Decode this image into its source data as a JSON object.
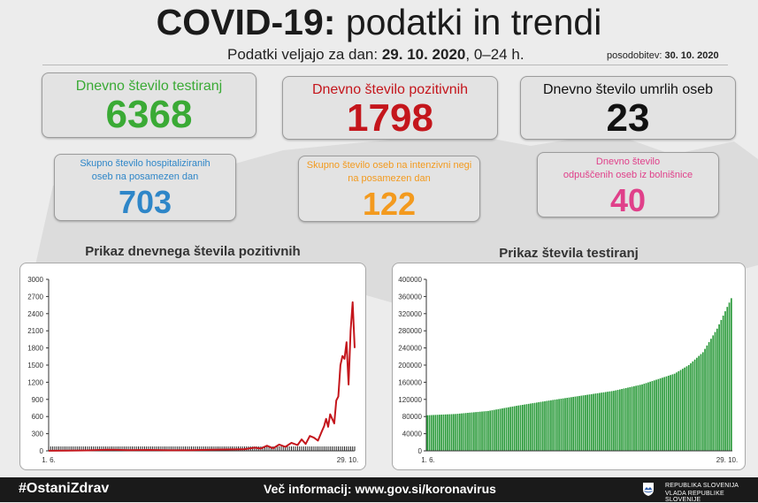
{
  "header": {
    "title_bold": "COVID-19:",
    "title_rest": "podatki in trendi",
    "subtitle_prefix": "Podatki veljajo za dan:",
    "subtitle_date": "29. 10. 2020",
    "subtitle_suffix": ", 0–24 h.",
    "update_label": "posodobitev:",
    "update_date": "30. 10. 2020"
  },
  "cards": {
    "tested": {
      "label": "Dnevno število testiranj",
      "value": "6368",
      "color": "#3aaa35"
    },
    "positive": {
      "label": "Dnevno število pozitivnih",
      "value": "1798",
      "color": "#c4161c"
    },
    "deaths": {
      "label": "Dnevno število umrlih oseb",
      "value": "23",
      "color": "#111111"
    },
    "hospitalized": {
      "label_line1": "Skupno število hospitaliziranih",
      "label_line2": "oseb na posamezen dan",
      "value": "703",
      "color": "#2e86c8"
    },
    "icu": {
      "label_line1": "Skupno število oseb na intenzivni negi",
      "label_line2": "na posamezen dan",
      "value": "122",
      "color": "#f39a1e"
    },
    "discharged": {
      "label_line1": "Dnevno število",
      "label_line2": "odpuščenih oseb iz bolnišnice",
      "value": "40",
      "color": "#e0408a"
    }
  },
  "chart_data": [
    {
      "type": "line",
      "title": "Prikaz dnevnega števila pozitivnih",
      "ylim": [
        0,
        3000
      ],
      "yticks": [
        0,
        300,
        600,
        900,
        1200,
        1500,
        1800,
        2100,
        2400,
        2700,
        3000
      ],
      "xlabel_start": "1. 6.",
      "xlabel_end": "29. 10.",
      "color": "#c4161c",
      "baseline_color": "#222222",
      "x_start": "2020-06-01",
      "x_end": "2020-10-29",
      "points": [
        [
          "2020-06-01",
          2
        ],
        [
          "2020-06-10",
          3
        ],
        [
          "2020-06-20",
          8
        ],
        [
          "2020-06-30",
          20
        ],
        [
          "2020-07-10",
          12
        ],
        [
          "2020-07-20",
          15
        ],
        [
          "2020-07-31",
          10
        ],
        [
          "2020-08-10",
          12
        ],
        [
          "2020-08-20",
          20
        ],
        [
          "2020-08-31",
          25
        ],
        [
          "2020-09-05",
          30
        ],
        [
          "2020-09-10",
          55
        ],
        [
          "2020-09-13",
          40
        ],
        [
          "2020-09-16",
          90
        ],
        [
          "2020-09-19",
          45
        ],
        [
          "2020-09-22",
          110
        ],
        [
          "2020-09-25",
          70
        ],
        [
          "2020-09-28",
          140
        ],
        [
          "2020-10-01",
          100
        ],
        [
          "2020-10-03",
          200
        ],
        [
          "2020-10-05",
          120
        ],
        [
          "2020-10-07",
          260
        ],
        [
          "2020-10-09",
          230
        ],
        [
          "2020-10-11",
          180
        ],
        [
          "2020-10-13",
          350
        ],
        [
          "2020-10-14",
          430
        ],
        [
          "2020-10-15",
          560
        ],
        [
          "2020-10-16",
          420
        ],
        [
          "2020-10-17",
          640
        ],
        [
          "2020-10-18",
          560
        ],
        [
          "2020-10-19",
          480
        ],
        [
          "2020-10-20",
          880
        ],
        [
          "2020-10-21",
          950
        ],
        [
          "2020-10-22",
          1500
        ],
        [
          "2020-10-23",
          1660
        ],
        [
          "2020-10-24",
          1610
        ],
        [
          "2020-10-25",
          1900
        ],
        [
          "2020-10-26",
          1160
        ],
        [
          "2020-10-27",
          2100
        ],
        [
          "2020-10-28",
          2600
        ],
        [
          "2020-10-29",
          1798
        ]
      ]
    },
    {
      "type": "bar",
      "title": "Prikaz števila testiranj",
      "ylim": [
        0,
        400000
      ],
      "yticks": [
        0,
        40000,
        80000,
        120000,
        160000,
        200000,
        240000,
        280000,
        320000,
        360000,
        400000
      ],
      "xlabel_start": "1. 6.",
      "xlabel_end": "29. 10.",
      "color": "#2a9a3a",
      "x_start": "2020-06-01",
      "x_end": "2020-10-29",
      "anchors": [
        [
          "2020-06-01",
          83000
        ],
        [
          "2020-06-15",
          86000
        ],
        [
          "2020-07-01",
          93000
        ],
        [
          "2020-07-15",
          105000
        ],
        [
          "2020-08-01",
          118000
        ],
        [
          "2020-08-15",
          128000
        ],
        [
          "2020-09-01",
          140000
        ],
        [
          "2020-09-15",
          155000
        ],
        [
          "2020-10-01",
          180000
        ],
        [
          "2020-10-08",
          200000
        ],
        [
          "2020-10-15",
          230000
        ],
        [
          "2020-10-22",
          285000
        ],
        [
          "2020-10-29",
          356000
        ]
      ]
    }
  ],
  "footer": {
    "hashtag": "#OstaniZdrav",
    "info": "Več informacij: www.gov.si/koronavirus",
    "gov_line1": "REPUBLIKA SLOVENIJA",
    "gov_line2": "VLADA REPUBLIKE SLOVENIJE"
  }
}
